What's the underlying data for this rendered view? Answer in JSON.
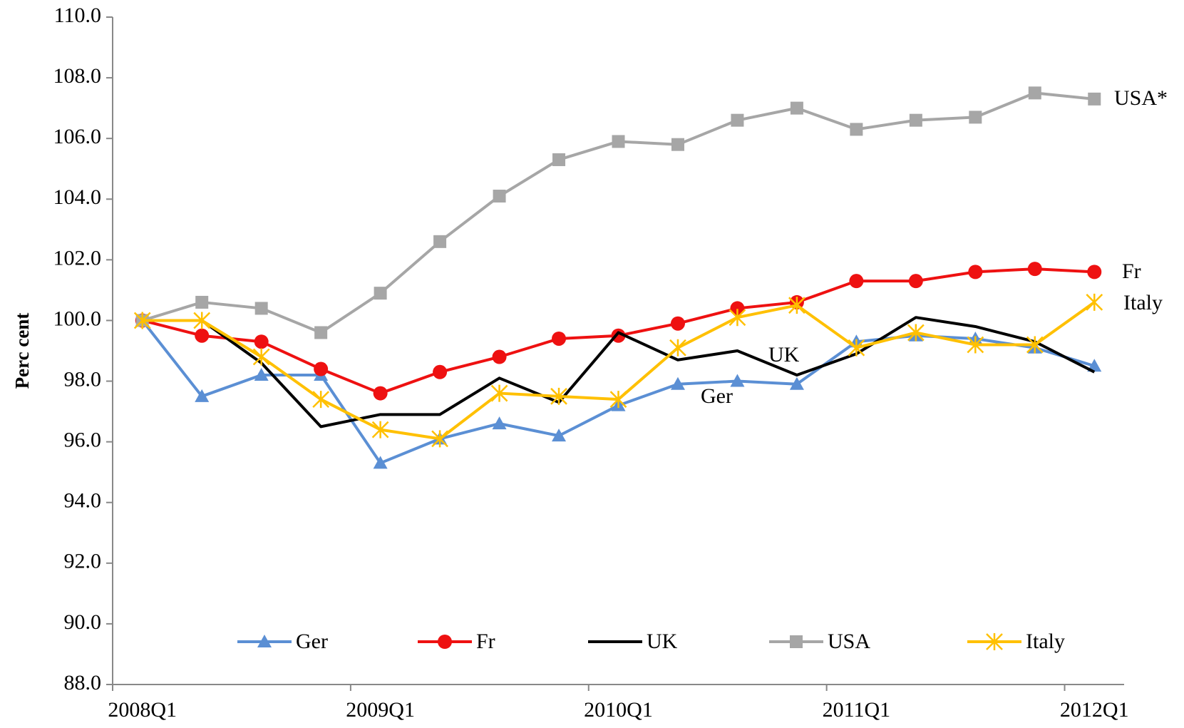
{
  "chart_data": {
    "type": "line",
    "y_label": "Perc cent",
    "categories": [
      "2008Q1",
      null,
      null,
      null,
      "2009Q1",
      null,
      null,
      null,
      "2010Q1",
      null,
      null,
      null,
      "2011Q1",
      null,
      null,
      null,
      "2012Q1"
    ],
    "series": [
      {
        "name": "Ger",
        "color": "#5b8fd4",
        "marker": "triangle",
        "values": [
          100,
          97.5,
          98.2,
          98.2,
          95.3,
          96.1,
          96.6,
          96.2,
          97.2,
          97.9,
          98.0,
          97.9,
          99.3,
          99.5,
          99.4,
          99.1,
          98.5
        ]
      },
      {
        "name": "Fr",
        "color": "#ee1111",
        "marker": "circle",
        "values": [
          100,
          99.5,
          99.3,
          98.4,
          97.6,
          98.3,
          98.8,
          99.4,
          99.5,
          99.9,
          100.4,
          100.6,
          101.3,
          101.3,
          101.6,
          101.7,
          101.6
        ]
      },
      {
        "name": "UK",
        "color": "#000000",
        "marker": "none",
        "values": [
          100,
          100,
          98.6,
          96.5,
          96.9,
          96.9,
          98.1,
          97.3,
          99.6,
          98.7,
          99.0,
          98.2,
          98.9,
          100.1,
          99.8,
          99.3,
          98.3
        ]
      },
      {
        "name": "USA",
        "color": "#a6a6a6",
        "marker": "square",
        "values": [
          100,
          100.6,
          100.4,
          99.6,
          100.9,
          102.6,
          104.1,
          105.3,
          105.9,
          105.8,
          106.6,
          107.0,
          106.3,
          106.6,
          106.7,
          107.5,
          107.3
        ]
      },
      {
        "name": "Italy",
        "color": "#ffc000",
        "marker": "star",
        "values": [
          100,
          100,
          98.8,
          97.4,
          96.4,
          96.1,
          97.6,
          97.5,
          97.4,
          99.1,
          100.1,
          100.5,
          99.1,
          99.6,
          99.2,
          99.2,
          100.6
        ]
      }
    ],
    "annotations": [
      "USA*",
      "Fr",
      "Italy",
      "UK",
      "Ger"
    ],
    "ylim": [
      88,
      110
    ],
    "yticks": [
      {
        "value": 88,
        "label": "88.0"
      },
      {
        "value": 90,
        "label": "90.0"
      },
      {
        "value": 92,
        "label": "92.0"
      },
      {
        "value": 94,
        "label": "94.0"
      },
      {
        "value": 96,
        "label": "96.0"
      },
      {
        "value": 98,
        "label": "98.0"
      },
      {
        "value": 100,
        "label": "100.0"
      },
      {
        "value": 102,
        "label": "102.0"
      },
      {
        "value": 104,
        "label": "104.0"
      },
      {
        "value": 106,
        "label": "106.0"
      },
      {
        "value": 108,
        "label": "108.0"
      },
      {
        "value": 110,
        "label": "110.0"
      }
    ],
    "legend": "bottom",
    "grid": false
  }
}
